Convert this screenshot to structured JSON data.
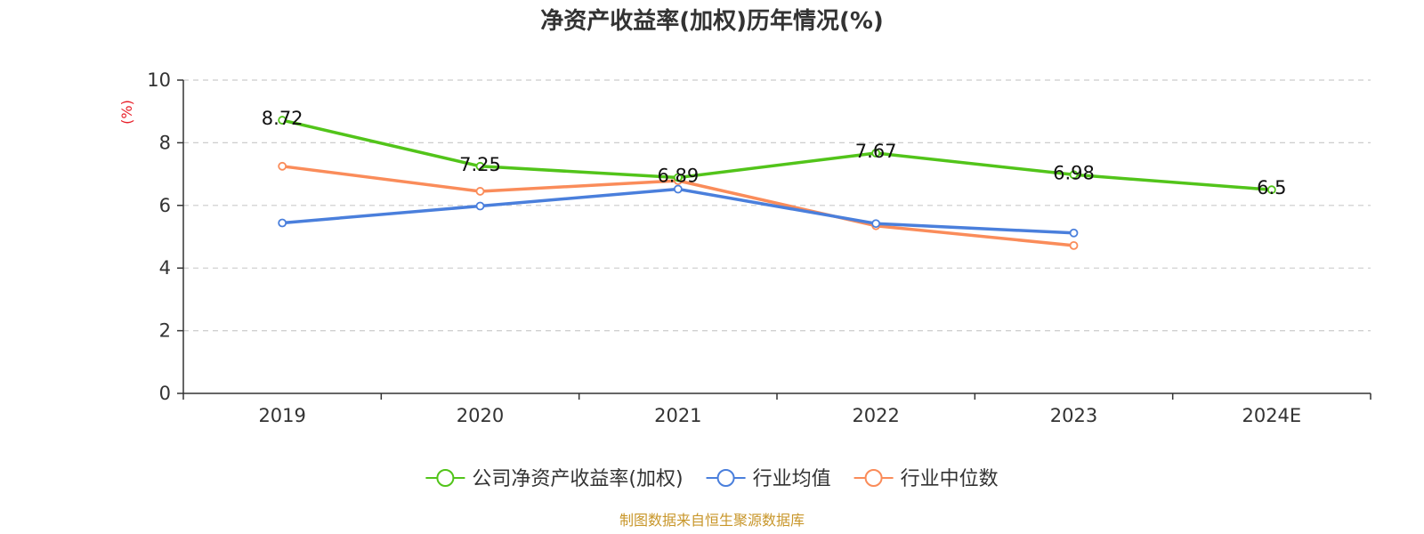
{
  "chart_data": {
    "type": "line",
    "title": "净资产收益率(加权)历年情况(%)",
    "ylabel": "(%)",
    "categories": [
      "2019",
      "2020",
      "2021",
      "2022",
      "2023",
      "2024E"
    ],
    "ylim": [
      0,
      10
    ],
    "yticks": [
      0,
      2,
      4,
      6,
      8,
      10
    ],
    "grid": true,
    "legend_position": "bottom",
    "series": [
      {
        "name": "公司净资产收益率(加权)",
        "color": "#52c41a",
        "values": [
          8.72,
          7.25,
          6.89,
          7.67,
          6.98,
          6.5
        ],
        "labels": [
          "8.72",
          "7.25",
          "6.89",
          "7.67",
          "6.98",
          "6.5"
        ]
      },
      {
        "name": "行业均值",
        "color": "#4a7fdc",
        "values": [
          5.44,
          5.98,
          6.52,
          5.42,
          5.12,
          null
        ]
      },
      {
        "name": "行业中位数",
        "color": "#fa8c5a",
        "values": [
          7.25,
          6.45,
          6.79,
          5.35,
          4.72,
          null
        ]
      }
    ],
    "source": "制图数据来自恒生聚源数据库"
  }
}
